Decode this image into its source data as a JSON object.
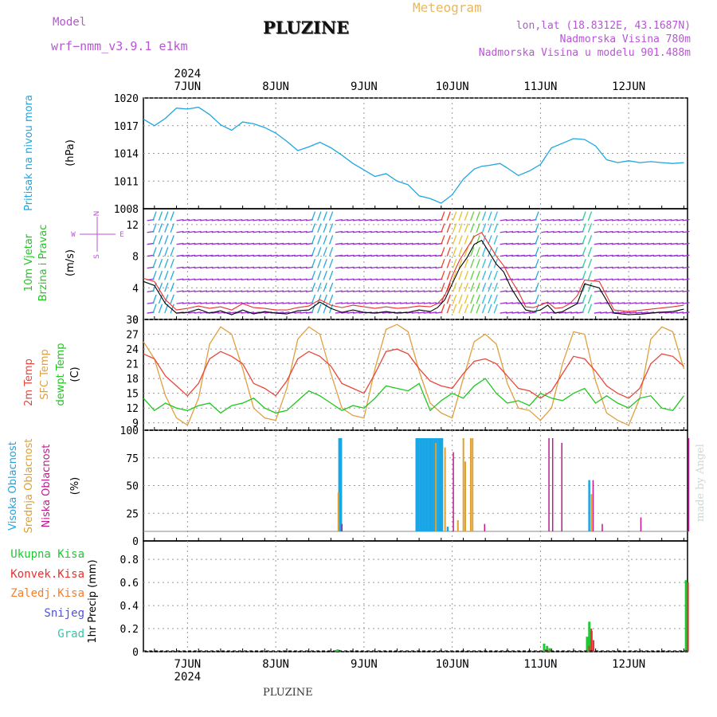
{
  "header": {
    "model_label": "Model",
    "model_name": "wrf−nmm_v3.9.1  e1km",
    "station": "PLUZINE",
    "meteogram_label": "Meteogram",
    "coords": "lon,lat (18.8312E, 43.1687N)",
    "elevation": "Nadmorska Visina 780m",
    "model_elevation": "Nadmorska Visina u modelu 901.488m"
  },
  "footer": {
    "station": "PLUZINE",
    "signature": "made by Angel"
  },
  "colors": {
    "pressure": "#1ea6e0",
    "temp2m": "#e8463a",
    "sfc_temp": "#e0a040",
    "dewpt": "#1ec81e",
    "high_cloud": "#18a6e6",
    "mid_cloud": "#e0a030",
    "low_cloud": "#c01890",
    "total_precip": "#22c832",
    "conv_precip": "#e83030",
    "frozen_precip": "#f08030",
    "snow": "#5050e0",
    "hail": "#30c8a8",
    "wind_speed": "#000000",
    "gust": "#e83030"
  },
  "time_axis": {
    "year": "2024",
    "days": [
      "7JUN",
      "8JUN",
      "9JUN",
      "10JUN",
      "11JUN",
      "12JUN"
    ],
    "day_hours": [
      12,
      36,
      60,
      84,
      108,
      132
    ],
    "range_hours": [
      0,
      148
    ]
  },
  "chart_data": [
    {
      "id": "pressure",
      "type": "line",
      "ylabel": "Pritisak na nivou mora",
      "unit": "(hPa)",
      "yticks": [
        1008,
        1011,
        1014,
        1017,
        1020
      ],
      "ylim": [
        1008,
        1020
      ],
      "series": [
        {
          "x": [
            0,
            3,
            6,
            9,
            12,
            15,
            18,
            21,
            24,
            27,
            30,
            33,
            36,
            39,
            42,
            45,
            48,
            51,
            54,
            57,
            60,
            63,
            66,
            69,
            72,
            75,
            78,
            81,
            84,
            87,
            90,
            92,
            94,
            97,
            99,
            102,
            105,
            108,
            111,
            114,
            117,
            120,
            123,
            126,
            129,
            132,
            135,
            138,
            141,
            144,
            147
          ],
          "y": [
            1017.7,
            1017.0,
            1017.8,
            1018.9,
            1018.8,
            1019.0,
            1018.2,
            1017.1,
            1016.5,
            1017.4,
            1017.2,
            1016.8,
            1016.2,
            1015.3,
            1014.3,
            1014.7,
            1015.2,
            1014.6,
            1013.8,
            1012.9,
            1012.2,
            1011.5,
            1011.8,
            1011.0,
            1010.6,
            1009.4,
            1009.1,
            1008.6,
            1009.5,
            1011.2,
            1012.3,
            1012.6,
            1012.7,
            1012.9,
            1012.4,
            1011.6,
            1012.1,
            1012.8,
            1014.6,
            1015.1,
            1015.6,
            1015.5,
            1014.8,
            1013.3,
            1013.0,
            1013.2,
            1013.0,
            1013.1,
            1013.0,
            1012.9,
            1013.0
          ]
        }
      ]
    },
    {
      "id": "wind",
      "type": "line",
      "ylabel": "10m Vjetar",
      "ylabel2": "Brzina i Pravac",
      "unit": "(m/s)",
      "compass": {
        "w": "W",
        "e": "E",
        "s": "S",
        "n": "N"
      },
      "yticks": [
        0,
        4,
        8,
        12
      ],
      "ylim": [
        0,
        14
      ],
      "series": [
        {
          "name": "speed",
          "x": [
            0,
            3,
            6,
            9,
            12,
            15,
            18,
            21,
            24,
            27,
            30,
            33,
            36,
            39,
            42,
            45,
            48,
            51,
            54,
            57,
            60,
            63,
            66,
            69,
            72,
            75,
            78,
            80,
            82,
            84,
            86,
            88,
            90,
            92,
            94,
            96,
            98,
            100,
            102,
            104,
            106,
            108,
            110,
            112,
            114,
            116,
            118,
            120,
            124,
            128,
            132,
            136,
            140,
            144,
            147
          ],
          "y": [
            4.8,
            4.3,
            2.0,
            0.8,
            0.9,
            1.3,
            0.8,
            1.1,
            0.6,
            1.2,
            0.7,
            1.0,
            0.8,
            0.7,
            1.1,
            1.2,
            2.2,
            1.4,
            0.9,
            1.2,
            0.9,
            0.8,
            1.0,
            0.8,
            0.9,
            1.2,
            1.0,
            1.5,
            2.5,
            4.5,
            6.5,
            7.8,
            9.5,
            10.0,
            8.5,
            7.0,
            6.0,
            4.0,
            2.5,
            1.2,
            1.0,
            1.2,
            1.8,
            0.8,
            1.0,
            1.5,
            2.0,
            4.5,
            4.0,
            0.8,
            0.6,
            0.7,
            0.9,
            1.0,
            1.3
          ]
        },
        {
          "name": "gust",
          "x": [
            0,
            3,
            6,
            9,
            12,
            15,
            18,
            21,
            24,
            27,
            30,
            33,
            36,
            39,
            42,
            45,
            48,
            51,
            54,
            57,
            60,
            63,
            66,
            69,
            72,
            75,
            78,
            80,
            82,
            84,
            86,
            88,
            90,
            92,
            94,
            96,
            98,
            100,
            102,
            104,
            106,
            108,
            110,
            112,
            114,
            116,
            118,
            120,
            124,
            128,
            132,
            136,
            140,
            144,
            147
          ],
          "y": [
            5.2,
            4.8,
            2.5,
            1.2,
            1.4,
            1.7,
            1.4,
            1.6,
            1.2,
            2.0,
            1.5,
            1.4,
            1.2,
            1.2,
            1.5,
            1.7,
            2.5,
            1.8,
            1.5,
            1.8,
            1.6,
            1.4,
            1.6,
            1.4,
            1.5,
            1.7,
            1.6,
            2.0,
            3.0,
            5.5,
            7.5,
            9.0,
            10.5,
            11.0,
            9.5,
            8.0,
            6.8,
            5.0,
            3.5,
            1.6,
            1.5,
            1.8,
            2.2,
            1.4,
            1.5,
            2.0,
            3.0,
            5.0,
            4.8,
            1.2,
            1.0,
            1.2,
            1.4,
            1.6,
            1.8
          ]
        }
      ]
    },
    {
      "id": "temperature",
      "type": "line",
      "ylabel": "2m Temp",
      "ylabel2": "SFC Temp",
      "ylabel3": "dewpt Temp",
      "unit": "(C)",
      "yticks": [
        9,
        12,
        15,
        18,
        21,
        24,
        27,
        30
      ],
      "ylim": [
        7.5,
        30
      ],
      "series": [
        {
          "name": "2m Temp",
          "x": [
            0,
            3,
            6,
            9,
            12,
            15,
            18,
            21,
            24,
            27,
            30,
            33,
            36,
            39,
            42,
            45,
            48,
            51,
            54,
            57,
            60,
            63,
            66,
            69,
            72,
            75,
            78,
            81,
            84,
            87,
            90,
            93,
            96,
            99,
            102,
            105,
            108,
            111,
            114,
            117,
            120,
            123,
            126,
            129,
            132,
            135,
            138,
            141,
            144,
            147
          ],
          "y": [
            23.0,
            22.0,
            18.5,
            16.5,
            14.5,
            17.0,
            22.0,
            23.5,
            22.5,
            21.0,
            17.0,
            16.0,
            14.5,
            17.5,
            22.0,
            23.5,
            22.5,
            20.5,
            17.0,
            16.0,
            15.0,
            19.0,
            23.5,
            24.0,
            23.0,
            20.0,
            17.5,
            16.5,
            16.0,
            19.0,
            21.5,
            22.0,
            21.0,
            18.5,
            16.0,
            15.5,
            14.0,
            15.5,
            19.0,
            22.5,
            22.0,
            19.5,
            16.5,
            15.0,
            14.0,
            16.0,
            21.0,
            23.0,
            22.5,
            20.5
          ]
        },
        {
          "name": "SFC Temp",
          "x": [
            0,
            3,
            6,
            9,
            12,
            15,
            18,
            21,
            24,
            27,
            30,
            33,
            36,
            39,
            42,
            45,
            48,
            51,
            54,
            57,
            60,
            63,
            66,
            69,
            72,
            75,
            78,
            81,
            84,
            87,
            90,
            93,
            96,
            99,
            102,
            105,
            108,
            111,
            114,
            117,
            120,
            123,
            126,
            129,
            132,
            135,
            138,
            141,
            144,
            147
          ],
          "y": [
            25.5,
            22.0,
            14.5,
            10.0,
            8.5,
            14.0,
            25.0,
            28.5,
            27.0,
            20.0,
            12.0,
            10.0,
            9.5,
            16.0,
            26.0,
            28.5,
            27.0,
            19.0,
            12.0,
            10.5,
            10.0,
            20.0,
            28.0,
            29.0,
            27.5,
            19.5,
            13.0,
            11.0,
            10.0,
            18.0,
            25.5,
            27.0,
            25.0,
            17.0,
            12.0,
            11.5,
            9.5,
            12.0,
            21.0,
            27.5,
            27.0,
            17.5,
            11.0,
            9.5,
            8.5,
            14.0,
            26.0,
            28.5,
            27.5,
            20.0
          ]
        },
        {
          "name": "dewpt Temp",
          "x": [
            0,
            3,
            6,
            9,
            12,
            15,
            18,
            21,
            24,
            27,
            30,
            33,
            36,
            39,
            42,
            45,
            48,
            51,
            54,
            57,
            60,
            63,
            66,
            69,
            72,
            75,
            78,
            81,
            84,
            87,
            90,
            93,
            96,
            99,
            102,
            105,
            108,
            111,
            114,
            117,
            120,
            123,
            126,
            129,
            132,
            135,
            138,
            141,
            144,
            147
          ],
          "y": [
            14.0,
            11.5,
            13.0,
            12.0,
            11.5,
            12.5,
            13.0,
            11.0,
            12.5,
            13.0,
            14.0,
            12.0,
            11.0,
            11.5,
            13.5,
            15.5,
            14.5,
            13.0,
            11.5,
            12.5,
            12.0,
            14.0,
            16.5,
            16.0,
            15.5,
            17.0,
            11.5,
            13.5,
            15.0,
            14.0,
            16.5,
            18.0,
            15.0,
            13.0,
            13.5,
            12.5,
            15.0,
            14.0,
            13.5,
            15.0,
            16.0,
            13.0,
            14.5,
            13.0,
            12.0,
            14.0,
            14.5,
            12.0,
            11.5,
            14.5
          ]
        }
      ]
    },
    {
      "id": "clouds",
      "type": "bar",
      "ylabel": "Visoka Oblacnost",
      "ylabel2": "Srednja Oblacnost",
      "ylabel3": "Niska Oblacnost",
      "unit": "(%)",
      "yticks": [
        0,
        25,
        50,
        75,
        100
      ],
      "ylim": [
        0,
        100
      ],
      "series": [
        {
          "name": "Visoka Oblacnost",
          "x": [
            53.0,
            53.5,
            74.0,
            74.5,
            75.0,
            75.5,
            76.0,
            76.5,
            77.0,
            77.5,
            78.0,
            78.5,
            79.0,
            79.5,
            80.0,
            80.5,
            81.0,
            82.5,
            121.0
          ],
          "y": [
            100,
            100,
            100,
            100,
            100,
            100,
            100,
            100,
            100,
            100,
            100,
            100,
            100,
            100,
            100,
            100,
            100,
            5,
            55
          ]
        },
        {
          "name": "Srednja Oblacnost",
          "x": [
            52.5,
            79.0,
            81.5,
            85.0,
            86.5,
            87.0,
            88.5,
            89.0,
            121.3
          ],
          "y": [
            42,
            95,
            90,
            12,
            100,
            75,
            100,
            100,
            40
          ]
        },
        {
          "name": "Niska Oblacnost",
          "x": [
            53.2,
            83.5,
            92.0,
            109.5,
            110.5,
            113.0,
            121.5,
            124.0,
            134.5,
            147.5
          ],
          "y": [
            8,
            85,
            8,
            100,
            100,
            95,
            55,
            8,
            15,
            100
          ]
        }
      ]
    },
    {
      "id": "precip",
      "type": "bar",
      "ylabel": "1hr Precip",
      "unit": "(mm)",
      "legend": [
        "Ukupna Kisa",
        "Konvek.Kisa",
        "Zaledj.Kisa",
        "Snijeg",
        "Grad"
      ],
      "yticks": [
        0,
        0.2,
        0.4,
        0.6,
        0.8
      ],
      "ylim": [
        0,
        0.96
      ],
      "series": [
        {
          "name": "Ukupna Kisa",
          "x": [
            52.8,
            53.3,
            109.0,
            109.8,
            110.5,
            120.7,
            121.3,
            121.9,
            147.6
          ],
          "y": [
            0.02,
            0.015,
            0.07,
            0.05,
            0.03,
            0.13,
            0.26,
            0.18,
            0.62
          ]
        },
        {
          "name": "Konvek.Kisa",
          "x": [
            109.0,
            109.8,
            120.7,
            121.3,
            121.9,
            147.6
          ],
          "y": [
            0.02,
            0.01,
            0.05,
            0.2,
            0.1,
            0.6
          ]
        }
      ]
    }
  ]
}
